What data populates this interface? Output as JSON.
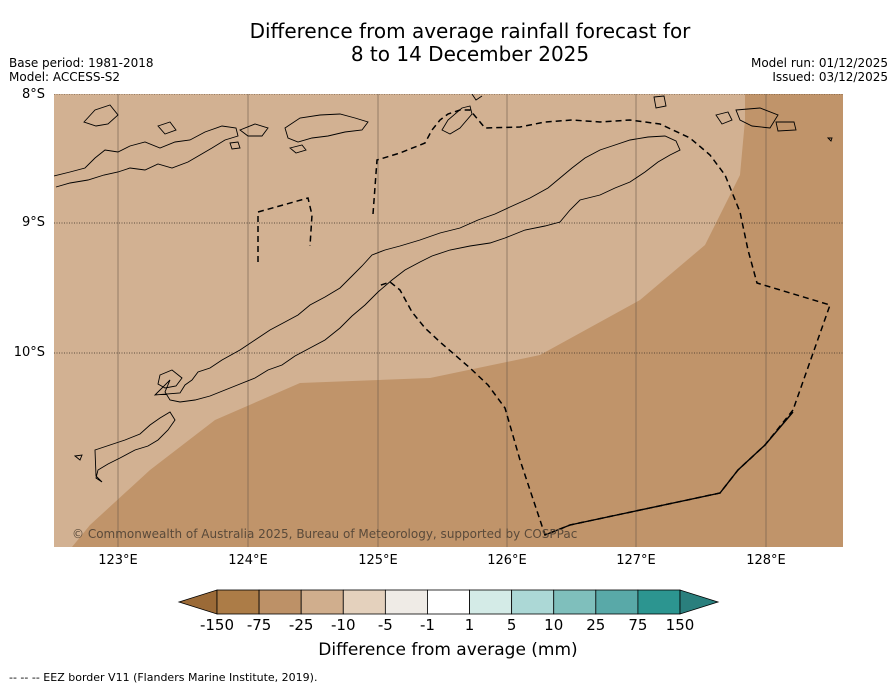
{
  "title": {
    "line1": "Difference from average rainfall forecast for",
    "line2": "8 to 14 December 2025"
  },
  "meta": {
    "base_period": "Base period: 1981-2018",
    "model": "Model: ACCESS-S2",
    "model_run": "Model run: 01/12/2025",
    "issued": "Issued: 03/12/2025"
  },
  "map": {
    "lat_labels": [
      "8°S",
      "9°S",
      "10°S"
    ],
    "lon_labels": [
      "123°E",
      "124°E",
      "125°E",
      "126°E",
      "127°E",
      "128°E"
    ],
    "copyright": "© Commonwealth of Australia 2025, Bureau of Meteorology, supported by COSPPac",
    "colors": {
      "light_tan": "#d2b192",
      "mid_tan": "#c0946a",
      "coast": "#000000"
    }
  },
  "colorbar": {
    "labels": [
      "-150",
      "-75",
      "-25",
      "-10",
      "-5",
      "-1",
      "1",
      "5",
      "10",
      "25",
      "75",
      "150"
    ],
    "colors": [
      "#9b6a37",
      "#ac7c47",
      "#bd9167",
      "#d0ae8d",
      "#e4d1bd",
      "#efebe6",
      "#ffffff",
      "#d4ebe7",
      "#acd8d6",
      "#7fbfbc",
      "#59a9a8",
      "#2c9590",
      "#2a7f7d"
    ],
    "title": "Difference from average (mm)"
  },
  "footnote": "--  --  -- EEZ border V11 (Flanders Marine Institute, 2019)."
}
